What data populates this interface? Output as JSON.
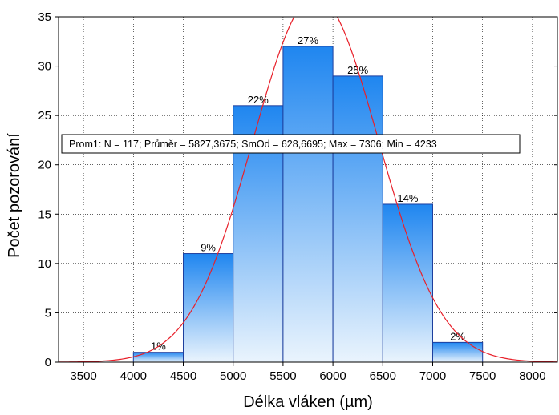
{
  "chart_data": {
    "type": "bar",
    "subtype": "histogram",
    "xlabel": "Délka vláken (µm)",
    "ylabel": "Počet pozorování",
    "xlim": [
      3250,
      8250
    ],
    "ylim": [
      0,
      35
    ],
    "x_ticks": [
      3500,
      4000,
      4500,
      5000,
      5500,
      6000,
      6500,
      7000,
      7500,
      8000
    ],
    "y_ticks": [
      0,
      5,
      10,
      15,
      20,
      25,
      30,
      35
    ],
    "grid": true,
    "bins": [
      {
        "start": 4000,
        "end": 4500,
        "count": 1,
        "label": "1%"
      },
      {
        "start": 4500,
        "end": 5000,
        "count": 11,
        "label": "9%"
      },
      {
        "start": 5000,
        "end": 5500,
        "count": 26,
        "label": "22%"
      },
      {
        "start": 5500,
        "end": 6000,
        "count": 32,
        "label": "27%"
      },
      {
        "start": 6000,
        "end": 6500,
        "count": 29,
        "label": "25%"
      },
      {
        "start": 6500,
        "end": 7000,
        "count": 16,
        "label": "14%"
      },
      {
        "start": 7000,
        "end": 7500,
        "count": 2,
        "label": "2%"
      }
    ],
    "normal_fit": {
      "n": 117,
      "mean": 5827.3675,
      "sd": 628.6695,
      "bin_width": 500,
      "color": "#e8202a"
    },
    "stats_label": "Prom1:   N = 117; Průměr = 5827,3675; SmOd = 628,6695; Max = 7306; Min = 4233",
    "colors": {
      "bar_top": "#1f86f0",
      "bar_bottom": "#eaf4fd",
      "bar_edge": "#1d3f9e",
      "grid": "#000000",
      "curve": "#e8202a"
    }
  }
}
